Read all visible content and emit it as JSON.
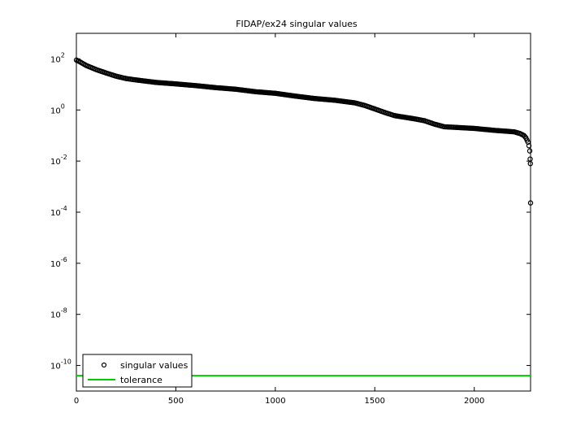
{
  "chart_data": {
    "type": "scatter",
    "title": "FIDAP/ex24 singular values",
    "xlabel": "",
    "ylabel": "",
    "yscale": "log",
    "xlim": [
      0,
      2283
    ],
    "ylim": [
      1e-11,
      1000
    ],
    "x_ticks": [
      {
        "value": 0,
        "label": "0"
      },
      {
        "value": 500,
        "label": "500"
      },
      {
        "value": 1000,
        "label": "1000"
      },
      {
        "value": 1500,
        "label": "1500"
      },
      {
        "value": 2000,
        "label": "2000"
      }
    ],
    "y_ticks": [
      {
        "value": 100,
        "base": "10",
        "exp": "2"
      },
      {
        "value": 1,
        "base": "10",
        "exp": "0"
      },
      {
        "value": 0.01,
        "base": "10",
        "exp": "-2"
      },
      {
        "value": 0.0001,
        "base": "10",
        "exp": "-4"
      },
      {
        "value": 1e-06,
        "base": "10",
        "exp": "-6"
      },
      {
        "value": 1e-08,
        "base": "10",
        "exp": "-8"
      },
      {
        "value": 1e-10,
        "base": "10",
        "exp": "-10"
      }
    ],
    "grid": false,
    "legend_position": "bottom-left",
    "series": [
      {
        "name": "singular values",
        "marker": "circle-open",
        "color": "#000000",
        "points": [
          [
            0,
            90
          ],
          [
            20,
            75
          ],
          [
            50,
            55
          ],
          [
            100,
            38
          ],
          [
            150,
            28
          ],
          [
            200,
            21
          ],
          [
            250,
            17
          ],
          [
            300,
            15
          ],
          [
            400,
            12
          ],
          [
            500,
            10.5
          ],
          [
            600,
            9
          ],
          [
            700,
            7.5
          ],
          [
            800,
            6.5
          ],
          [
            900,
            5.2
          ],
          [
            1000,
            4.5
          ],
          [
            1100,
            3.5
          ],
          [
            1200,
            2.8
          ],
          [
            1300,
            2.4
          ],
          [
            1400,
            1.9
          ],
          [
            1450,
            1.5
          ],
          [
            1500,
            1.1
          ],
          [
            1550,
            0.8
          ],
          [
            1600,
            0.6
          ],
          [
            1700,
            0.45
          ],
          [
            1750,
            0.38
          ],
          [
            1800,
            0.28
          ],
          [
            1850,
            0.22
          ],
          [
            1900,
            0.21
          ],
          [
            2000,
            0.19
          ],
          [
            2100,
            0.16
          ],
          [
            2200,
            0.14
          ],
          [
            2230,
            0.12
          ],
          [
            2250,
            0.1
          ],
          [
            2260,
            0.08
          ],
          [
            2270,
            0.055
          ],
          [
            2275,
            0.04
          ],
          [
            2279,
            0.025
          ],
          [
            2281,
            0.012
          ],
          [
            2282,
            0.008
          ],
          [
            2283,
            0.00023
          ]
        ]
      },
      {
        "name": "tolerance",
        "marker": "line",
        "color": "#00cc00",
        "value": 4e-11
      }
    ]
  }
}
